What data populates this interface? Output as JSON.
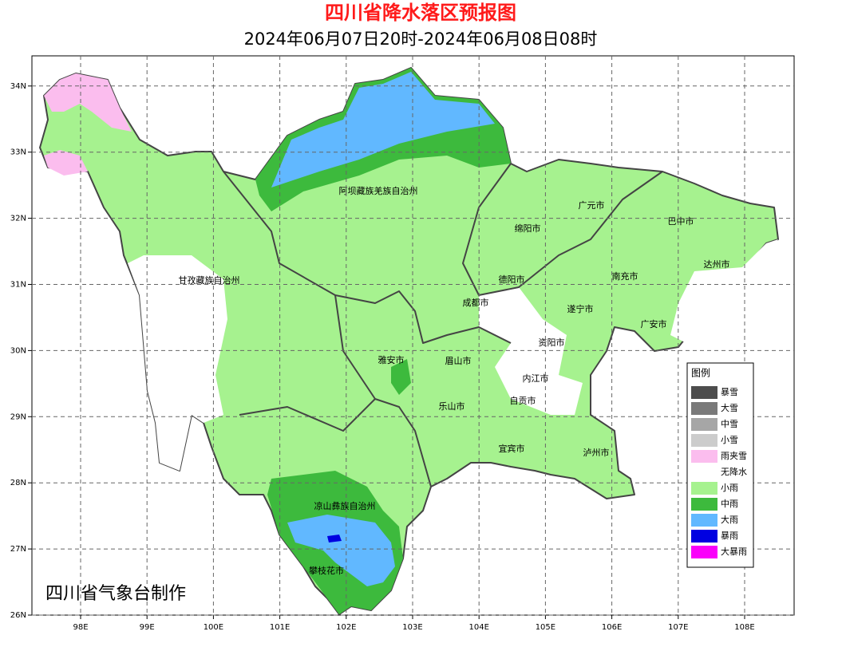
{
  "header": {
    "title": "四川省降水落区预报图",
    "subtitle": "2024年06月07日20时-2024年06月08日08时"
  },
  "map": {
    "lon_ticks": [
      {
        "value": 98,
        "label": "98E"
      },
      {
        "value": 99,
        "label": "99E"
      },
      {
        "value": 100,
        "label": "100E"
      },
      {
        "value": 101,
        "label": "101E"
      },
      {
        "value": 102,
        "label": "102E"
      },
      {
        "value": 103,
        "label": "103E"
      },
      {
        "value": 104,
        "label": "104E"
      },
      {
        "value": 105,
        "label": "105E"
      },
      {
        "value": 106,
        "label": "106E"
      },
      {
        "value": 107,
        "label": "107E"
      },
      {
        "value": 108,
        "label": "108E"
      }
    ],
    "lat_ticks": [
      {
        "value": 26,
        "label": "26N"
      },
      {
        "value": 27,
        "label": "27N"
      },
      {
        "value": 28,
        "label": "28N"
      },
      {
        "value": 29,
        "label": "29N"
      },
      {
        "value": 30,
        "label": "30N"
      },
      {
        "value": 31,
        "label": "31N"
      },
      {
        "value": 32,
        "label": "32N"
      },
      {
        "value": 33,
        "label": "33N"
      },
      {
        "value": 34,
        "label": "34N"
      }
    ],
    "regions": [
      "阿坝藏族羌族自治州",
      "广元市",
      "巴中市",
      "绵阳市",
      "达州市",
      "甘孜藏族自治州",
      "德阳市",
      "南充市",
      "成都市",
      "遂宁市",
      "广安市",
      "资阳市",
      "雅安市",
      "眉山市",
      "内江市",
      "自贡市",
      "乐山市",
      "宜宾市",
      "泸州市",
      "凉山彝族自治州",
      "攀枝花市"
    ]
  },
  "legend": {
    "title": "图例",
    "items": [
      {
        "label": "暴雪",
        "color": "#4d4d4d"
      },
      {
        "label": "大雪",
        "color": "#7a7a7a"
      },
      {
        "label": "中雪",
        "color": "#a6a6a6"
      },
      {
        "label": "小雪",
        "color": "#cccccc"
      },
      {
        "label": "雨夹雪",
        "color": "#fbbdee"
      },
      {
        "label": "无降水",
        "color": "#ffffff"
      },
      {
        "label": "小雨",
        "color": "#a6f28f"
      },
      {
        "label": "中雨",
        "color": "#3dba3d"
      },
      {
        "label": "大雨",
        "color": "#61b8ff"
      },
      {
        "label": "暴雨",
        "color": "#0000e1"
      },
      {
        "label": "大暴雨",
        "color": "#fa00fa"
      }
    ]
  },
  "footer": "四川省气象台制作"
}
